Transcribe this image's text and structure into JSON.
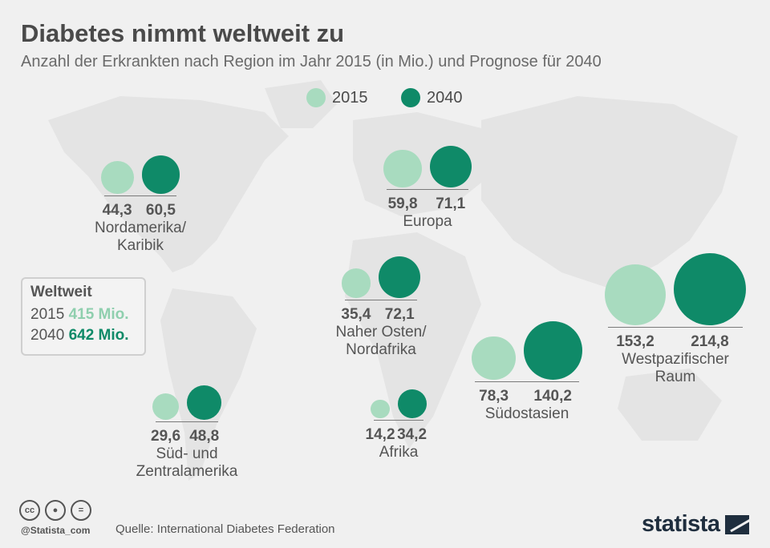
{
  "header": {
    "title": "Diabetes nimmt weltweit zu",
    "subtitle": "Anzahl der Erkrankten nach Region im Jahr 2015 (in Mio.) und Prognose für 2040"
  },
  "legend": [
    {
      "label": "2015",
      "color": "#a8dbbf"
    },
    {
      "label": "2040",
      "color": "#0f8a68"
    }
  ],
  "colors": {
    "y2015": "#a8dbbf",
    "y2040": "#0f8a68",
    "text": "#555555"
  },
  "worldwide": {
    "title": "Weltweit",
    "rows": [
      {
        "year": "2015",
        "value": "415 Mio.",
        "color": "#8fcfae"
      },
      {
        "year": "2040",
        "value": "642 Mio.",
        "color": "#0f8a68"
      }
    ]
  },
  "chart_data": {
    "type": "bubble",
    "title": "Diabetes nimmt weltweit zu",
    "subtitle": "Anzahl der Erkrankten nach Region im Jahr 2015 (in Mio.) und Prognose für 2040",
    "series": [
      {
        "name": "2015",
        "values": [
          44.3,
          59.8,
          35.4,
          153.2,
          78.3,
          29.6,
          14.2
        ]
      },
      {
        "name": "2040",
        "values": [
          60.5,
          71.1,
          72.1,
          214.8,
          140.2,
          48.8,
          34.2
        ]
      }
    ],
    "categories": [
      "Nordamerika/ Karibik",
      "Europa",
      "Naher Osten/ Nordafrika",
      "Westpazifischer Raum",
      "Südostasien",
      "Süd- und Zentralamerika",
      "Afrika"
    ],
    "regions": [
      {
        "name_lines": [
          "Nordamerika/",
          "Karibik"
        ],
        "v2015": 44.3,
        "v2040": 60.5,
        "label2015": "44,3",
        "label2040": "60,5"
      },
      {
        "name_lines": [
          "Europa"
        ],
        "v2015": 59.8,
        "v2040": 71.1,
        "label2015": "59,8",
        "label2040": "71,1"
      },
      {
        "name_lines": [
          "Naher Osten/",
          "Nordafrika"
        ],
        "v2015": 35.4,
        "v2040": 72.1,
        "label2015": "35,4",
        "label2040": "72,1"
      },
      {
        "name_lines": [
          "Westpazifischer",
          "Raum"
        ],
        "v2015": 153.2,
        "v2040": 214.8,
        "label2015": "153,2",
        "label2040": "214,8"
      },
      {
        "name_lines": [
          "Südostasien"
        ],
        "v2015": 78.3,
        "v2040": 140.2,
        "label2015": "78,3",
        "label2040": "140,2"
      },
      {
        "name_lines": [
          "Süd- und",
          "Zentralamerika"
        ],
        "v2015": 29.6,
        "v2040": 48.8,
        "label2015": "29,6",
        "label2040": "48,8"
      },
      {
        "name_lines": [
          "Afrika"
        ],
        "v2015": 14.2,
        "v2040": 34.2,
        "label2015": "14,2",
        "label2040": "34,2"
      }
    ]
  },
  "footer": {
    "license_icons": [
      "cc-icon",
      "by-icon",
      "nd-icon"
    ],
    "handle": "@Statista_com",
    "source": "Quelle: International Diabetes Federation",
    "logo": "statista"
  }
}
